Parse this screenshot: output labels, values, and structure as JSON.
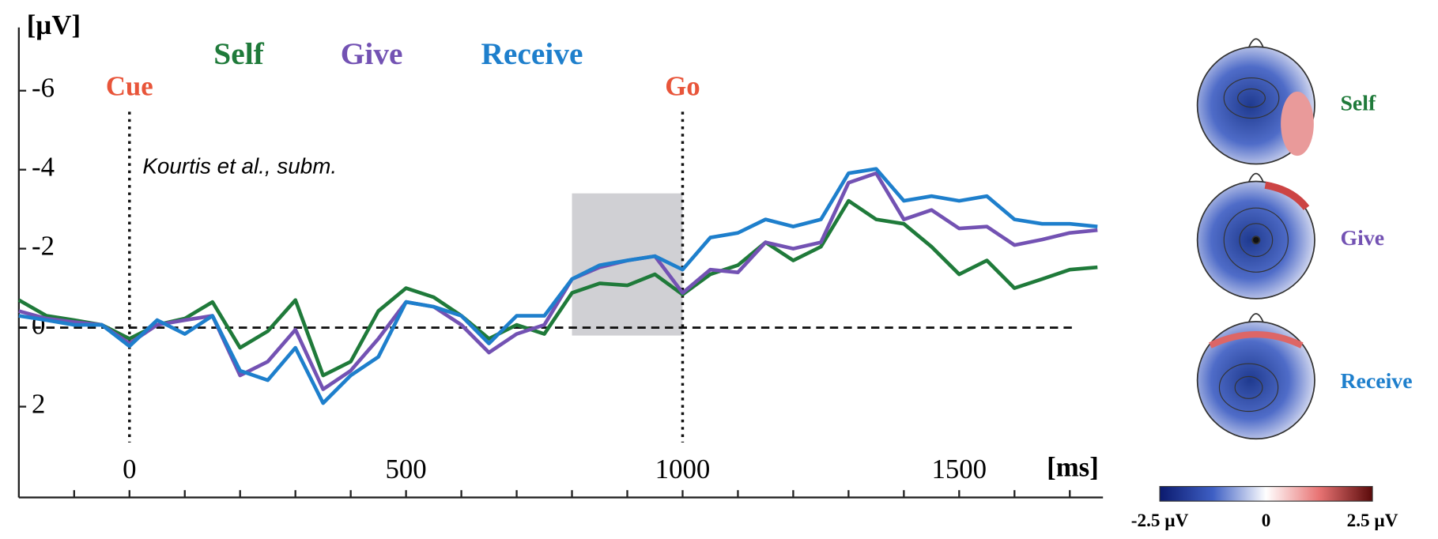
{
  "chart_data": {
    "type": "line",
    "y_label": "[µV]",
    "x_label": "[ms]",
    "annotation": "Kourtis et al., subm.",
    "x": [
      -200,
      -150,
      -100,
      -50,
      0,
      50,
      100,
      150,
      200,
      250,
      300,
      350,
      400,
      450,
      500,
      550,
      600,
      650,
      700,
      750,
      800,
      850,
      900,
      950,
      1000,
      1050,
      1100,
      1150,
      1200,
      1250,
      1300,
      1350,
      1400,
      1450,
      1500,
      1550,
      1600,
      1650,
      1700,
      1750
    ],
    "series": [
      {
        "name": "Self",
        "color": "#1f7a3a",
        "values": [
          -0.7,
          -0.3,
          -0.19,
          -0.07,
          0.28,
          -0.07,
          -0.23,
          -0.65,
          0.51,
          0.09,
          -0.7,
          1.21,
          0.86,
          -0.42,
          -1.0,
          -0.77,
          -0.3,
          0.28,
          -0.07,
          0.16,
          -0.88,
          -1.12,
          -1.07,
          -1.35,
          -0.84,
          -1.35,
          -1.58,
          -2.16,
          -1.7,
          -2.05,
          -3.21,
          -2.74,
          -2.63,
          -2.05,
          -1.35,
          -1.7,
          -1.0,
          -1.23,
          -1.47,
          -1.53
        ]
      },
      {
        "name": "Give",
        "color": "#7352b3",
        "values": [
          -0.42,
          -0.23,
          -0.14,
          -0.07,
          0.4,
          -0.07,
          -0.19,
          -0.3,
          1.21,
          0.86,
          0.05,
          1.56,
          1.09,
          0.28,
          -0.65,
          -0.53,
          -0.07,
          0.63,
          0.16,
          -0.07,
          -1.23,
          -1.53,
          -1.7,
          -1.81,
          -0.88,
          -1.47,
          -1.4,
          -2.16,
          -2.0,
          -2.16,
          -3.67,
          -3.91,
          -2.74,
          -2.98,
          -2.51,
          -2.56,
          -2.09,
          -2.23,
          -2.4,
          -2.47
        ]
      },
      {
        "name": "Receive",
        "color": "#1e7fcc",
        "values": [
          -0.3,
          -0.19,
          -0.07,
          -0.07,
          0.47,
          -0.19,
          0.16,
          -0.3,
          1.09,
          1.33,
          0.51,
          1.91,
          1.21,
          0.74,
          -0.65,
          -0.53,
          -0.3,
          0.4,
          -0.3,
          -0.3,
          -1.23,
          -1.58,
          -1.7,
          -1.81,
          -1.47,
          -2.28,
          -2.4,
          -2.74,
          -2.56,
          -2.74,
          -3.91,
          -4.02,
          -3.21,
          -3.33,
          -3.21,
          -3.33,
          -2.74,
          -2.63,
          -2.63,
          -2.56
        ]
      }
    ],
    "events": [
      {
        "x": 0,
        "label": "Cue"
      },
      {
        "x": 1000,
        "label": "Go"
      }
    ],
    "event_color": "#e8553a",
    "highlight": {
      "x": [
        800,
        1000
      ],
      "y": [
        -3.4,
        0.2
      ]
    },
    "xlim": [
      -200,
      1760
    ],
    "ylim": [
      -7.6,
      4.3
    ],
    "y_inverted": true,
    "xticks": [
      0,
      500,
      1000,
      1500
    ],
    "xminorticks": [
      -100,
      0,
      100,
      200,
      300,
      400,
      500,
      600,
      700,
      800,
      900,
      1000,
      1100,
      1200,
      1300,
      1400,
      1500,
      1600,
      1700
    ],
    "yticks": [
      -6,
      -4,
      -2,
      0,
      2
    ],
    "topomaps": [
      "Self",
      "Give",
      "Receive"
    ],
    "colorbar": {
      "lim": [
        -2.5,
        2.5
      ],
      "ticks": [
        {
          "value": -2.5,
          "label": "-2.5 µV"
        },
        0,
        {
          "value": 2.5,
          "label": "2.5 µV"
        }
      ]
    }
  }
}
